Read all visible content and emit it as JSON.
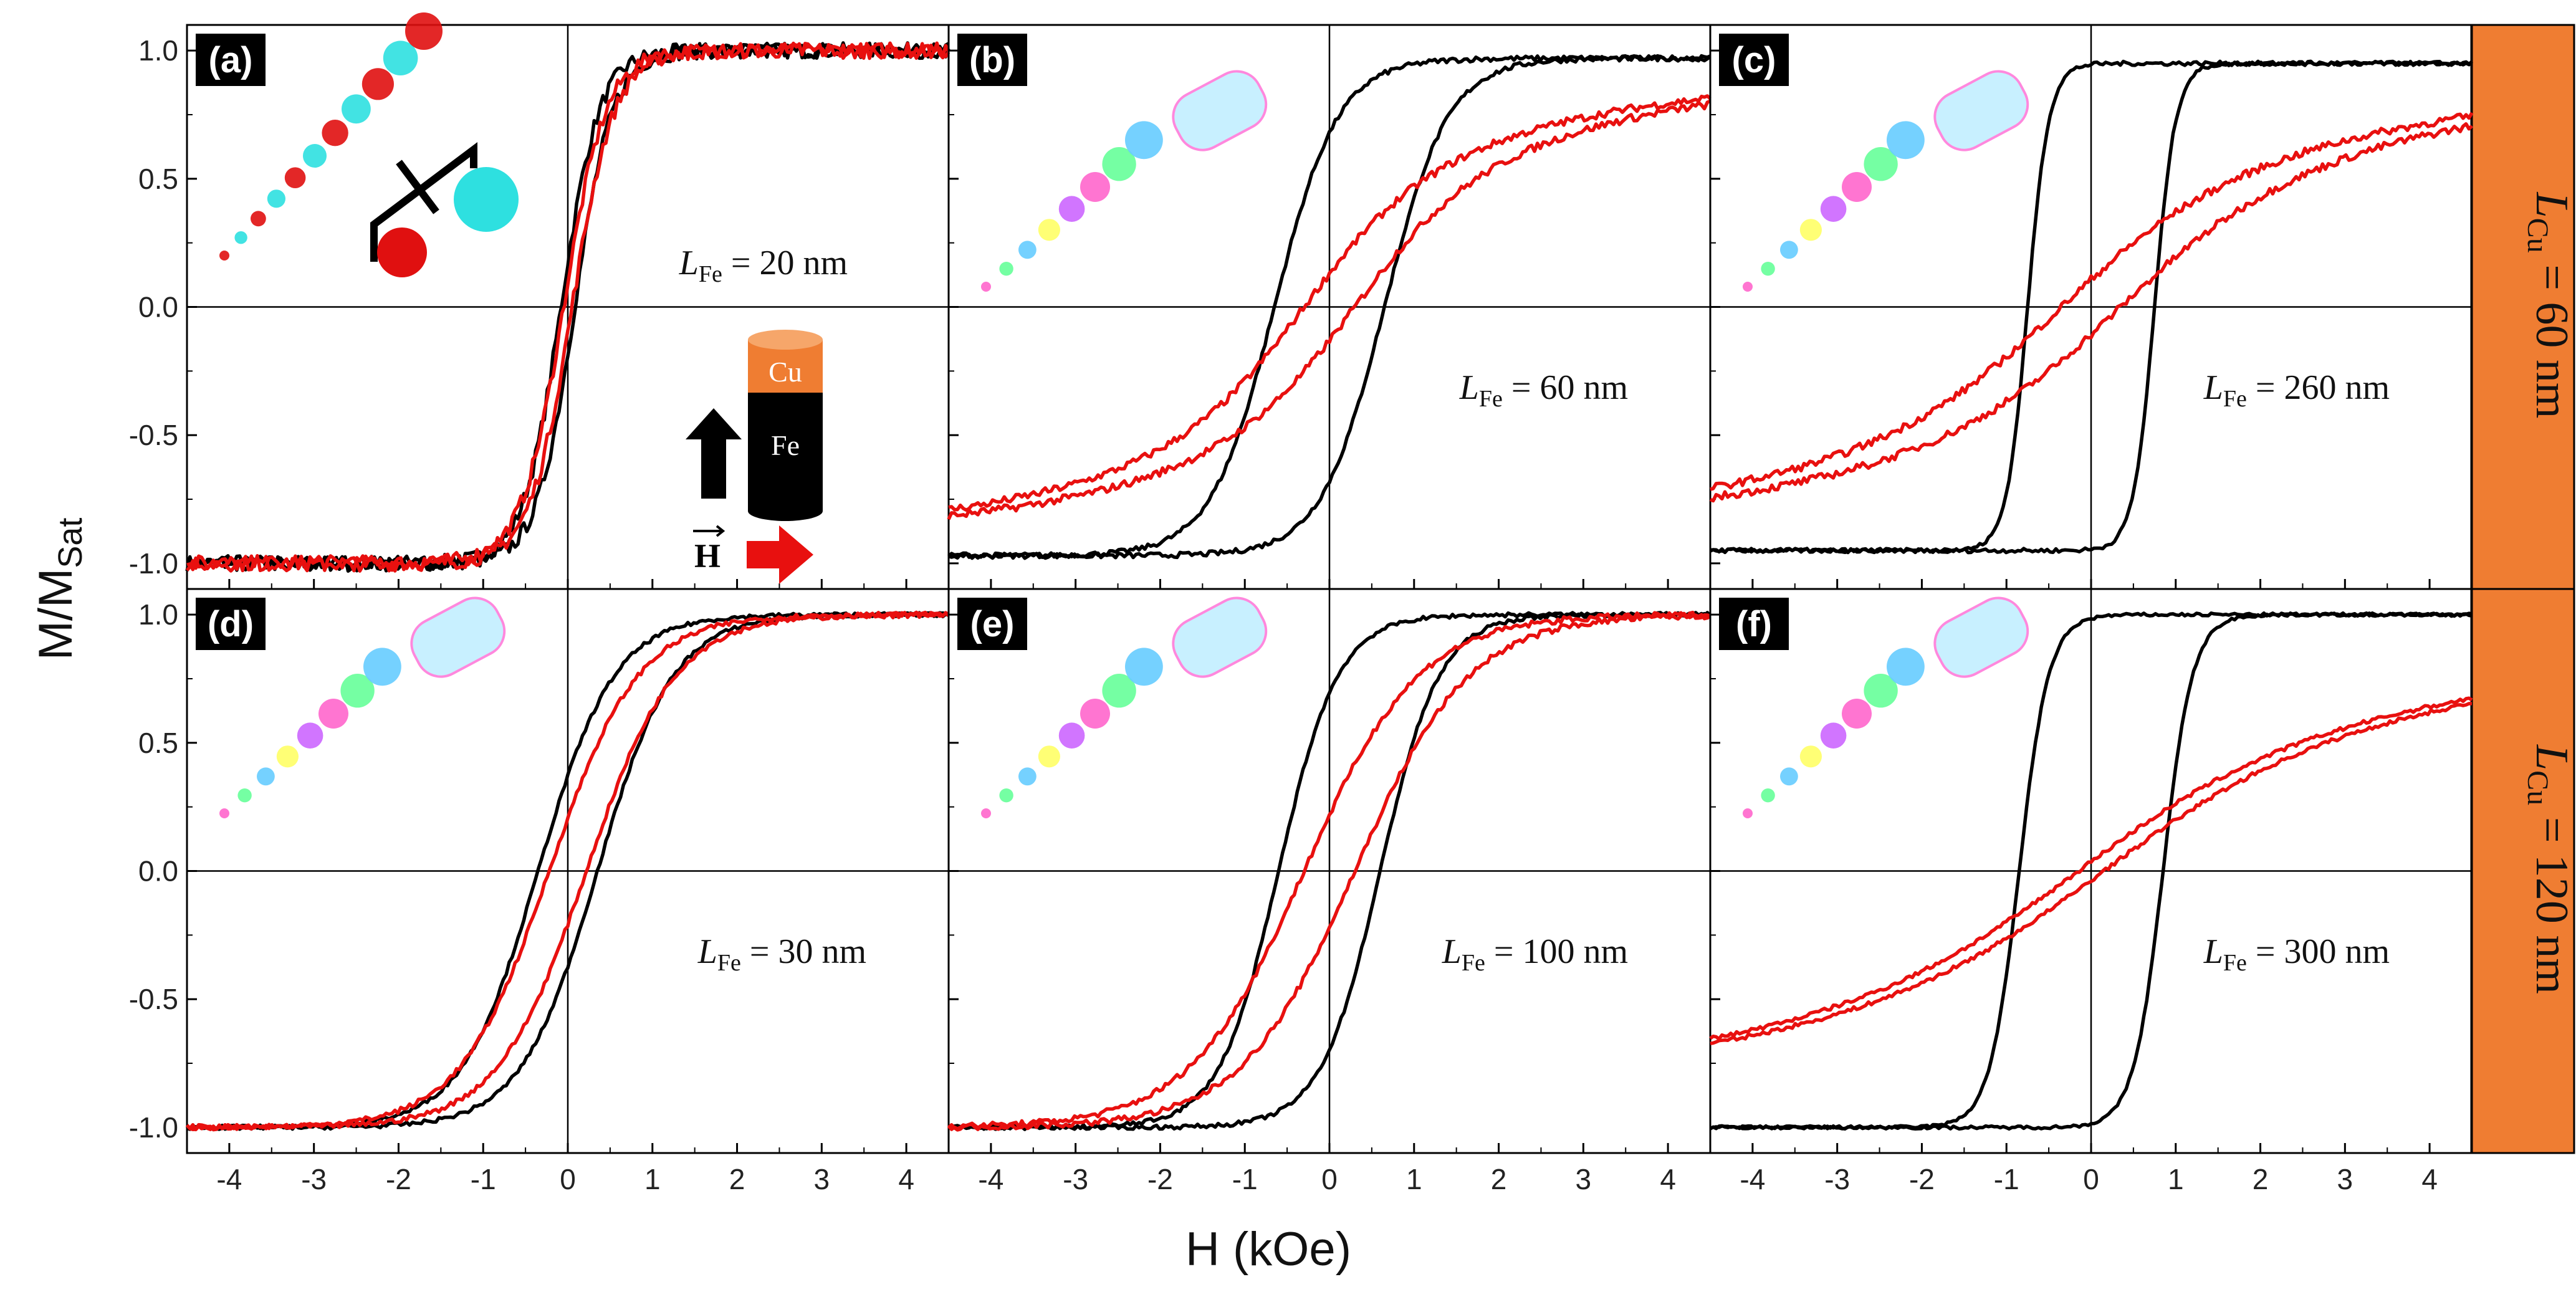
{
  "figure": {
    "xlabel": "H (kOe)",
    "ylabel_main": "M/M",
    "ylabel_sub": "Sat"
  },
  "chart_data": [
    {
      "id": "a",
      "type": "line",
      "tag": "(a)",
      "annotation": {
        "var": "L",
        "sub": "Fe",
        "value": " = 20 nm"
      },
      "row": "60 nm",
      "xlim": [
        -4.5,
        4.5
      ],
      "ylim": [
        -1.1,
        1.1
      ],
      "xticks": [
        "-4",
        "-3",
        "-2",
        "-1",
        "0",
        "1",
        "2",
        "3",
        "4"
      ],
      "yticks": [
        "1.0",
        "0.5",
        "0.0",
        "-0.5",
        "-1.0"
      ],
      "series": [
        {
          "name": "black",
          "color": "#000000",
          "Hc": 0.08,
          "w": 0.45,
          "noise": 0.03,
          "shape": "tanh"
        },
        {
          "name": "red",
          "color": "#e8100f",
          "Hc": 0.05,
          "w": 0.5,
          "noise": 0.03,
          "shape": "tanh"
        }
      ]
    },
    {
      "id": "b",
      "type": "line",
      "tag": "(b)",
      "annotation": {
        "var": "L",
        "sub": "Fe",
        "value": " = 60 nm"
      },
      "row": "60 nm",
      "xlim": [
        -4.5,
        4.5
      ],
      "ylim": [
        -1.1,
        1.1
      ],
      "xticks": [
        "-4",
        "-3",
        "-2",
        "-1",
        "0",
        "1",
        "2",
        "3",
        "4"
      ],
      "yticks": [
        "1.0",
        "0.5",
        "0.0",
        "-0.5",
        "-1.0"
      ],
      "series": [
        {
          "name": "black",
          "color": "#000000",
          "Hc": 0.65,
          "w": 0.75,
          "noise": 0.01,
          "shape": "tanh",
          "amp": 0.97
        },
        {
          "name": "red",
          "color": "#e8100f",
          "Hc": 0.3,
          "w": 2.3,
          "noise": 0.015,
          "shape": "atan"
        }
      ]
    },
    {
      "id": "c",
      "type": "line",
      "tag": "(c)",
      "annotation": {
        "var": "L",
        "sub": "Fe",
        "value": " = 260 nm"
      },
      "row": "60 nm",
      "xlim": [
        -4.5,
        4.5
      ],
      "ylim": [
        -1.1,
        1.1
      ],
      "xticks": [
        "-4",
        "-3",
        "-2",
        "-1",
        "0",
        "1",
        "2",
        "3",
        "4"
      ],
      "yticks": [
        "1.0",
        "0.5",
        "0.0",
        "-0.5",
        "-1.0"
      ],
      "series": [
        {
          "name": "black",
          "color": "#000000",
          "Hc": 0.75,
          "w": 0.25,
          "noise": 0.008,
          "shape": "square",
          "amp": 0.95
        },
        {
          "name": "red",
          "color": "#e8100f",
          "Hc": 0.35,
          "w": 3.3,
          "noise": 0.015,
          "shape": "atan"
        }
      ]
    },
    {
      "id": "d",
      "type": "line",
      "tag": "(d)",
      "annotation": {
        "var": "L",
        "sub": "Fe",
        "value": " = 30 nm"
      },
      "row": "120 nm",
      "xlim": [
        -4.5,
        4.5
      ],
      "ylim": [
        -1.1,
        1.1
      ],
      "xticks": [
        "-4",
        "-3",
        "-2",
        "-1",
        "0",
        "1",
        "2",
        "3",
        "4"
      ],
      "yticks": [
        "1.0",
        "0.5",
        "0.0",
        "-0.5",
        "-1.0"
      ],
      "series": [
        {
          "name": "black",
          "color": "#000000",
          "Hc": 0.35,
          "w": 0.9,
          "noise": 0.008,
          "shape": "tanh"
        },
        {
          "name": "red",
          "color": "#e8100f",
          "Hc": 0.22,
          "w": 1.05,
          "noise": 0.01,
          "shape": "tanh"
        }
      ]
    },
    {
      "id": "e",
      "type": "line",
      "tag": "(e)",
      "annotation": {
        "var": "L",
        "sub": "Fe",
        "value": " = 100 nm"
      },
      "row": "120 nm",
      "xlim": [
        -4.5,
        4.5
      ],
      "ylim": [
        -1.1,
        1.1
      ],
      "xticks": [
        "-4",
        "-3",
        "-2",
        "-1",
        "0",
        "1",
        "2",
        "3",
        "4"
      ],
      "yticks": [
        "1.0",
        "0.5",
        "0.0",
        "-0.5",
        "-1.0"
      ],
      "series": [
        {
          "name": "black",
          "color": "#000000",
          "Hc": 0.6,
          "w": 0.7,
          "noise": 0.008,
          "shape": "tanh"
        },
        {
          "name": "red",
          "color": "#e8100f",
          "Hc": 0.3,
          "w": 1.35,
          "noise": 0.012,
          "shape": "tanh"
        }
      ]
    },
    {
      "id": "f",
      "type": "line",
      "tag": "(f)",
      "annotation": {
        "var": "L",
        "sub": "Fe",
        "value": " = 300 nm"
      },
      "row": "120 nm",
      "xlim": [
        -4.5,
        4.5
      ],
      "ylim": [
        -1.1,
        1.1
      ],
      "xticks": [
        "-4",
        "-3",
        "-2",
        "-1",
        "0",
        "1",
        "2",
        "3",
        "4"
      ],
      "yticks": [
        "1.0",
        "0.5",
        "0.0",
        "-0.5",
        "-1.0"
      ],
      "series": [
        {
          "name": "black",
          "color": "#000000",
          "Hc": 0.85,
          "w": 0.35,
          "noise": 0.006,
          "shape": "tanh"
        },
        {
          "name": "red",
          "color": "#e8100f",
          "Hc": 0.15,
          "w": 4.2,
          "noise": 0.008,
          "shape": "atan"
        }
      ]
    }
  ],
  "rows": [
    {
      "var": "L",
      "sub": "Cu",
      "value": " = 60 nm"
    },
    {
      "var": "L",
      "sub": "Cu",
      "value": " = 120 nm"
    }
  ],
  "inset": {
    "cu_label": "Cu",
    "fe_label": "Fe",
    "h_label": "H"
  },
  "colors": {
    "accent": "#ef7d32",
    "black": "#000000",
    "red": "#e8100f"
  }
}
